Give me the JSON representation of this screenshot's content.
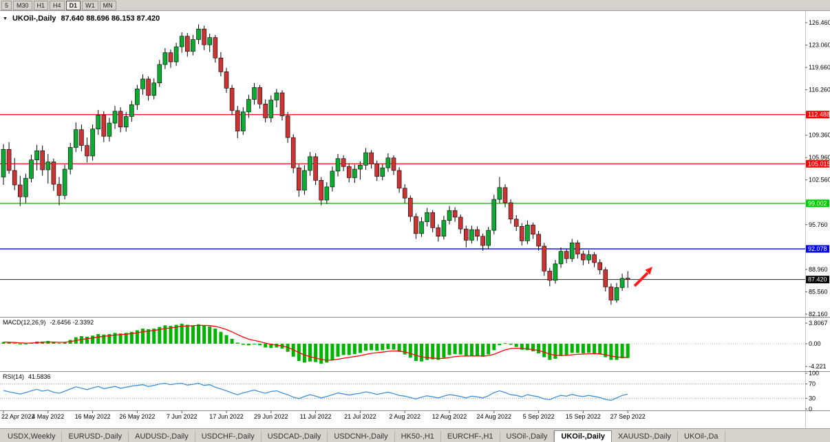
{
  "colors": {
    "up": "#0caa30",
    "down": "#cc3333",
    "wick": "#000000",
    "resistance": "#ff0000",
    "support_green": "#00cc00",
    "support_blue": "#0000ff",
    "price_line": "#222222",
    "macd_bar": "#00b400",
    "macd_signal": "#ff0000",
    "rsi_line": "#4090d8",
    "arrow": "#ff1a1a",
    "chrome_bg": "#d6d3ce"
  },
  "toolbar": {
    "timeframes": [
      {
        "label": "5",
        "active": false
      },
      {
        "label": "M30",
        "active": false
      },
      {
        "label": "H1",
        "active": false
      },
      {
        "label": "H4",
        "active": false
      },
      {
        "label": "D1",
        "active": true
      },
      {
        "label": "W1",
        "active": false
      },
      {
        "label": "MN",
        "active": false
      }
    ]
  },
  "chart_header": {
    "collapse_icon": "▼",
    "title": "UKOil-,Daily",
    "values": "87.640 88.696 86.153 87.420"
  },
  "chart_data": {
    "type": "candlestick",
    "title": "UKOil-,Daily",
    "open": "87.640",
    "high": "88.696",
    "low": "86.153",
    "close": "87.420",
    "price_axis": {
      "min": 82.16,
      "max": 126.46,
      "ticks": [
        126.46,
        123.06,
        119.66,
        116.26,
        109.36,
        105.96,
        102.56,
        95.76,
        88.96,
        85.56,
        82.16
      ]
    },
    "hlines": [
      {
        "price": 112.488,
        "label": "112.488",
        "color": "#ff0000"
      },
      {
        "price": 105.015,
        "label": "105.015",
        "color": "#ff0000"
      },
      {
        "price": 99.002,
        "label": "99.002",
        "color": "#00cc00"
      },
      {
        "price": 92.078,
        "label": "92.078",
        "color": "#0000ff"
      }
    ],
    "current_price": {
      "price": 87.42,
      "label": "87.420",
      "color": "#000000"
    },
    "x_labels": [
      "22 Apr 2022",
      "4 May 2022",
      "16 May 2022",
      "26 May 2022",
      "7 Jun 2022",
      "17 Jun 2022",
      "29 Jun 2022",
      "11 Jul 2022",
      "21 Jul 2022",
      "2 Aug 2022",
      "12 Aug 2022",
      "24 Aug 2022",
      "5 Sep 2022",
      "15 Sep 2022",
      "27 Sep 2022"
    ],
    "label_every": 8,
    "candles": [
      [
        103.0,
        108.0,
        101.8,
        107.2
      ],
      [
        107.2,
        108.3,
        103.5,
        104.0
      ],
      [
        104.0,
        105.9,
        101.0,
        101.8
      ],
      [
        101.8,
        103.2,
        98.6,
        100.0
      ],
      [
        100.0,
        103.5,
        99.0,
        102.8
      ],
      [
        102.8,
        106.4,
        102.2,
        105.6
      ],
      [
        105.6,
        107.9,
        104.0,
        107.0
      ],
      [
        107.0,
        107.8,
        103.2,
        104.1
      ],
      [
        104.1,
        106.5,
        102.0,
        105.3
      ],
      [
        105.3,
        105.8,
        100.9,
        101.9
      ],
      [
        101.9,
        103.0,
        98.7,
        100.2
      ],
      [
        100.2,
        104.9,
        99.6,
        104.2
      ],
      [
        104.2,
        108.2,
        103.4,
        107.5
      ],
      [
        107.5,
        111.3,
        106.8,
        110.2
      ],
      [
        110.2,
        111.0,
        106.9,
        107.8
      ],
      [
        107.8,
        109.0,
        105.2,
        106.2
      ],
      [
        106.2,
        111.0,
        105.5,
        110.3
      ],
      [
        110.3,
        113.2,
        109.4,
        112.4
      ],
      [
        112.4,
        113.0,
        108.3,
        109.2
      ],
      [
        109.2,
        112.0,
        108.4,
        111.2
      ],
      [
        111.2,
        113.8,
        110.3,
        113.0
      ],
      [
        113.0,
        113.6,
        109.8,
        110.6
      ],
      [
        110.6,
        112.9,
        109.9,
        112.2
      ],
      [
        112.2,
        114.6,
        111.4,
        114.0
      ],
      [
        114.0,
        117.0,
        113.2,
        116.4
      ],
      [
        116.4,
        118.6,
        115.5,
        117.9
      ],
      [
        117.9,
        118.3,
        114.6,
        115.4
      ],
      [
        115.4,
        118.0,
        114.8,
        117.3
      ],
      [
        117.3,
        120.8,
        116.7,
        120.1
      ],
      [
        120.1,
        122.6,
        119.4,
        121.9
      ],
      [
        121.9,
        122.4,
        119.6,
        120.5
      ],
      [
        120.5,
        123.4,
        119.9,
        122.8
      ],
      [
        122.8,
        125.0,
        121.9,
        124.4
      ],
      [
        124.4,
        124.9,
        121.3,
        122.1
      ],
      [
        122.1,
        124.6,
        121.5,
        123.9
      ],
      [
        123.9,
        126.2,
        123.2,
        125.5
      ],
      [
        125.5,
        126.0,
        122.3,
        123.1
      ],
      [
        123.1,
        124.8,
        122.0,
        124.2
      ],
      [
        124.2,
        124.6,
        120.4,
        121.1
      ],
      [
        121.1,
        122.0,
        118.3,
        119.0
      ],
      [
        119.0,
        119.6,
        115.8,
        116.5
      ],
      [
        116.5,
        117.0,
        112.4,
        113.1
      ],
      [
        113.1,
        113.8,
        108.9,
        110.0
      ],
      [
        110.0,
        113.6,
        109.4,
        112.9
      ],
      [
        112.9,
        115.5,
        112.0,
        114.8
      ],
      [
        114.8,
        117.3,
        114.0,
        116.6
      ],
      [
        116.6,
        117.0,
        113.4,
        114.1
      ],
      [
        114.1,
        114.8,
        111.3,
        112.0
      ],
      [
        112.0,
        115.4,
        111.3,
        114.7
      ],
      [
        114.7,
        116.4,
        113.6,
        115.8
      ],
      [
        115.8,
        116.2,
        111.6,
        112.3
      ],
      [
        112.3,
        112.9,
        108.2,
        109.0
      ],
      [
        109.0,
        109.5,
        103.6,
        104.4
      ],
      [
        104.4,
        105.0,
        100.0,
        101.0
      ],
      [
        101.0,
        104.8,
        100.3,
        104.0
      ],
      [
        104.0,
        106.8,
        103.2,
        106.1
      ],
      [
        106.1,
        106.6,
        101.8,
        102.5
      ],
      [
        102.5,
        103.0,
        98.7,
        99.5
      ],
      [
        99.5,
        102.2,
        98.9,
        101.5
      ],
      [
        101.5,
        104.6,
        100.8,
        103.9
      ],
      [
        103.9,
        106.5,
        103.1,
        105.8
      ],
      [
        105.8,
        106.3,
        103.9,
        104.6
      ],
      [
        104.6,
        105.1,
        102.2,
        102.9
      ],
      [
        102.9,
        104.9,
        102.1,
        104.2
      ],
      [
        104.2,
        105.4,
        102.6,
        104.8
      ],
      [
        104.8,
        107.4,
        104.1,
        106.7
      ],
      [
        106.7,
        107.1,
        104.3,
        105.0
      ],
      [
        105.0,
        105.5,
        102.4,
        103.1
      ],
      [
        103.1,
        105.0,
        102.5,
        104.4
      ],
      [
        104.4,
        106.6,
        103.8,
        105.9
      ],
      [
        105.9,
        106.3,
        103.3,
        104.0
      ],
      [
        104.0,
        104.5,
        100.6,
        101.3
      ],
      [
        101.3,
        101.9,
        99.0,
        99.8
      ],
      [
        99.8,
        100.2,
        96.2,
        97.0
      ],
      [
        97.0,
        97.5,
        93.6,
        94.4
      ],
      [
        94.4,
        96.9,
        93.9,
        96.2
      ],
      [
        96.2,
        98.3,
        95.5,
        97.6
      ],
      [
        97.6,
        98.0,
        94.6,
        95.3
      ],
      [
        95.3,
        95.8,
        93.2,
        94.0
      ],
      [
        94.0,
        97.1,
        93.5,
        96.4
      ],
      [
        96.4,
        98.6,
        95.8,
        97.9
      ],
      [
        97.9,
        98.4,
        96.2,
        96.9
      ],
      [
        96.9,
        97.3,
        94.4,
        95.1
      ],
      [
        95.1,
        95.6,
        92.3,
        93.4
      ],
      [
        93.4,
        95.6,
        92.9,
        95.0
      ],
      [
        95.0,
        95.5,
        93.3,
        94.0
      ],
      [
        94.0,
        94.4,
        91.8,
        92.6
      ],
      [
        92.6,
        95.4,
        92.1,
        94.9
      ],
      [
        94.9,
        100.3,
        94.3,
        99.6
      ],
      [
        99.6,
        103.0,
        99.0,
        101.4
      ],
      [
        101.4,
        101.9,
        98.4,
        99.1
      ],
      [
        99.1,
        99.6,
        95.9,
        96.6
      ],
      [
        96.6,
        97.2,
        94.8,
        95.5
      ],
      [
        95.5,
        96.0,
        92.6,
        93.3
      ],
      [
        93.3,
        96.4,
        92.8,
        95.7
      ],
      [
        95.7,
        96.1,
        93.6,
        94.3
      ],
      [
        94.3,
        94.8,
        91.8,
        92.5
      ],
      [
        92.5,
        93.0,
        88.0,
        88.7
      ],
      [
        88.7,
        89.2,
        86.4,
        87.3
      ],
      [
        87.3,
        90.4,
        86.8,
        89.8
      ],
      [
        89.8,
        92.3,
        89.2,
        91.7
      ],
      [
        91.7,
        92.1,
        89.9,
        90.6
      ],
      [
        90.6,
        93.6,
        90.1,
        93.0
      ],
      [
        93.0,
        93.4,
        90.6,
        91.3
      ],
      [
        91.3,
        91.8,
        89.6,
        90.4
      ],
      [
        90.4,
        91.9,
        89.8,
        91.2
      ],
      [
        91.2,
        91.6,
        89.3,
        90.0
      ],
      [
        90.0,
        90.5,
        88.2,
        88.9
      ],
      [
        88.9,
        89.3,
        85.6,
        86.3
      ],
      [
        86.3,
        86.8,
        83.6,
        84.3
      ],
      [
        84.3,
        86.9,
        83.9,
        86.2
      ],
      [
        86.2,
        88.3,
        85.7,
        87.6
      ],
      [
        87.64,
        88.696,
        86.153,
        87.42
      ]
    ],
    "macd": {
      "title": "MACD(12,26,9)",
      "values_text": "-2.6456 -2.3392",
      "axis": [
        {
          "v": 3.8067,
          "t": "3.8067"
        },
        {
          "v": 0,
          "t": "0.00"
        },
        {
          "v": -4.221,
          "t": "-4.221"
        }
      ],
      "histogram": [
        0.3,
        0.2,
        0.1,
        -0.1,
        0.0,
        0.2,
        0.4,
        0.4,
        0.5,
        0.3,
        0.1,
        0.3,
        0.7,
        1.2,
        1.4,
        1.3,
        1.5,
        1.8,
        1.7,
        1.8,
        2.0,
        1.9,
        2.0,
        2.2,
        2.5,
        2.8,
        2.7,
        2.8,
        3.1,
        3.4,
        3.3,
        3.5,
        3.7,
        3.5,
        3.4,
        3.6,
        3.4,
        3.2,
        2.8,
        2.2,
        1.6,
        0.9,
        0.2,
        -0.2,
        -0.3,
        -0.1,
        -0.3,
        -0.7,
        -0.8,
        -0.7,
        -0.9,
        -1.5,
        -2.4,
        -3.2,
        -3.5,
        -3.3,
        -3.4,
        -3.7,
        -3.5,
        -3.0,
        -2.4,
        -2.1,
        -2.1,
        -1.9,
        -1.7,
        -1.3,
        -1.2,
        -1.3,
        -1.2,
        -1.0,
        -1.1,
        -1.5,
        -2.0,
        -2.6,
        -3.2,
        -3.3,
        -3.0,
        -2.9,
        -3.0,
        -2.6,
        -2.1,
        -1.9,
        -2.0,
        -2.3,
        -2.2,
        -2.2,
        -2.4,
        -2.0,
        -1.2,
        -0.3,
        0.1,
        -0.2,
        -0.6,
        -1.1,
        -1.2,
        -1.4,
        -1.8,
        -2.5,
        -3.0,
        -2.8,
        -2.3,
        -2.1,
        -1.7,
        -1.7,
        -1.8,
        -1.7,
        -1.8,
        -2.0,
        -2.5,
        -3.0,
        -3.0,
        -2.7,
        -2.6456
      ]
    },
    "rsi": {
      "title": "RSI(14)",
      "value_text": "41.5836",
      "levels": [
        {
          "v": 100,
          "t": "100"
        },
        {
          "v": 70,
          "t": "70"
        },
        {
          "v": 30,
          "t": "30"
        },
        {
          "v": 0,
          "t": "0"
        }
      ],
      "values": [
        52,
        48,
        45,
        42,
        46,
        51,
        55,
        50,
        53,
        47,
        44,
        50,
        56,
        62,
        58,
        54,
        59,
        63,
        57,
        60,
        63,
        58,
        61,
        64,
        66,
        68,
        63,
        66,
        70,
        72,
        68,
        71,
        72,
        67,
        69,
        72,
        66,
        68,
        61,
        56,
        51,
        45,
        40,
        45,
        49,
        53,
        48,
        44,
        49,
        51,
        45,
        40,
        33,
        29,
        35,
        40,
        36,
        31,
        35,
        40,
        45,
        42,
        39,
        42,
        44,
        48,
        45,
        41,
        44,
        47,
        43,
        38,
        36,
        32,
        28,
        33,
        37,
        34,
        31,
        36,
        40,
        38,
        35,
        31,
        36,
        34,
        31,
        37,
        46,
        51,
        46,
        40,
        38,
        34,
        40,
        37,
        34,
        28,
        26,
        33,
        38,
        36,
        41,
        37,
        35,
        38,
        35,
        32,
        27,
        24,
        31,
        38,
        41.5836
      ]
    }
  },
  "tabs": [
    {
      "label": "USDX,Weekly",
      "active": false
    },
    {
      "label": "EURUSD-,Daily",
      "active": false
    },
    {
      "label": "AUDUSD-,Daily",
      "active": false
    },
    {
      "label": "USDCHF-,Daily",
      "active": false
    },
    {
      "label": "USDCAD-,Daily",
      "active": false
    },
    {
      "label": "USDCNH-,Daily",
      "active": false
    },
    {
      "label": "HK50-,H1",
      "active": false
    },
    {
      "label": "EURCHF-,H1",
      "active": false
    },
    {
      "label": "USOil-,Daily",
      "active": false
    },
    {
      "label": "UKOil-,Daily",
      "active": true
    },
    {
      "label": "XAUUSD-,Daily",
      "active": false
    },
    {
      "label": "UKOil-,Da",
      "active": false
    }
  ]
}
